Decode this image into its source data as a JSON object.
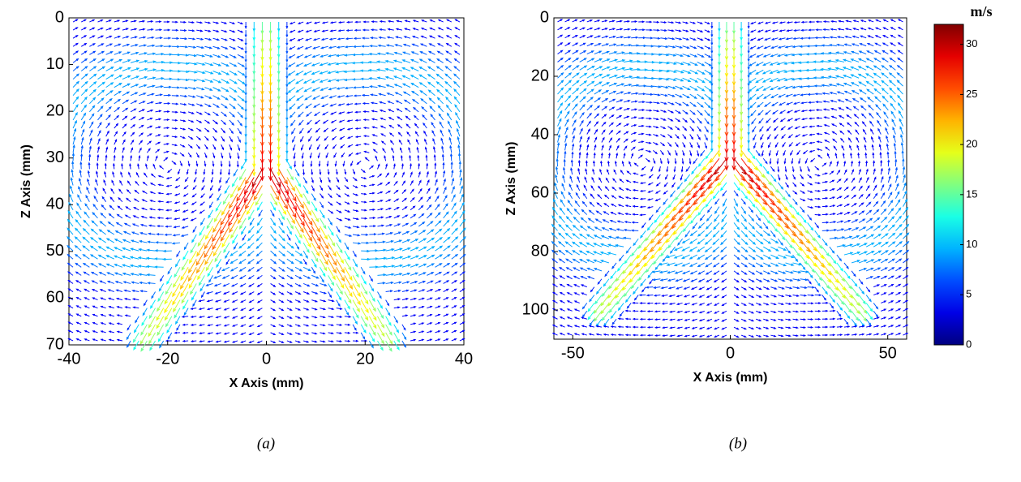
{
  "chart_data": [
    {
      "type": "quiver",
      "xlabel": "X Axis (mm)",
      "ylabel": "Z Axis (mm)",
      "xlim": [
        -40,
        40
      ],
      "xticks": [
        -40,
        -20,
        0,
        20,
        40
      ],
      "ylim": [
        0,
        70
      ],
      "yticks": [
        0,
        10,
        20,
        30,
        40,
        50,
        60,
        70
      ],
      "y_inverted": true,
      "caption": "(a)"
    },
    {
      "type": "quiver",
      "xlabel": "X Axis (mm)",
      "ylabel": "Z Axis (mm)",
      "xlim": [
        -56,
        56
      ],
      "xticks": [
        -50,
        0,
        50
      ],
      "ylim": [
        0,
        110
      ],
      "yticks": [
        0,
        20,
        40,
        60,
        80,
        100
      ],
      "y_inverted": true,
      "caption": "(b)",
      "colorbar": {
        "label": "m/s",
        "lim": [
          0,
          32
        ],
        "ticks": [
          0,
          5,
          10,
          15,
          20,
          25,
          30
        ],
        "colormap": "jet"
      }
    }
  ]
}
